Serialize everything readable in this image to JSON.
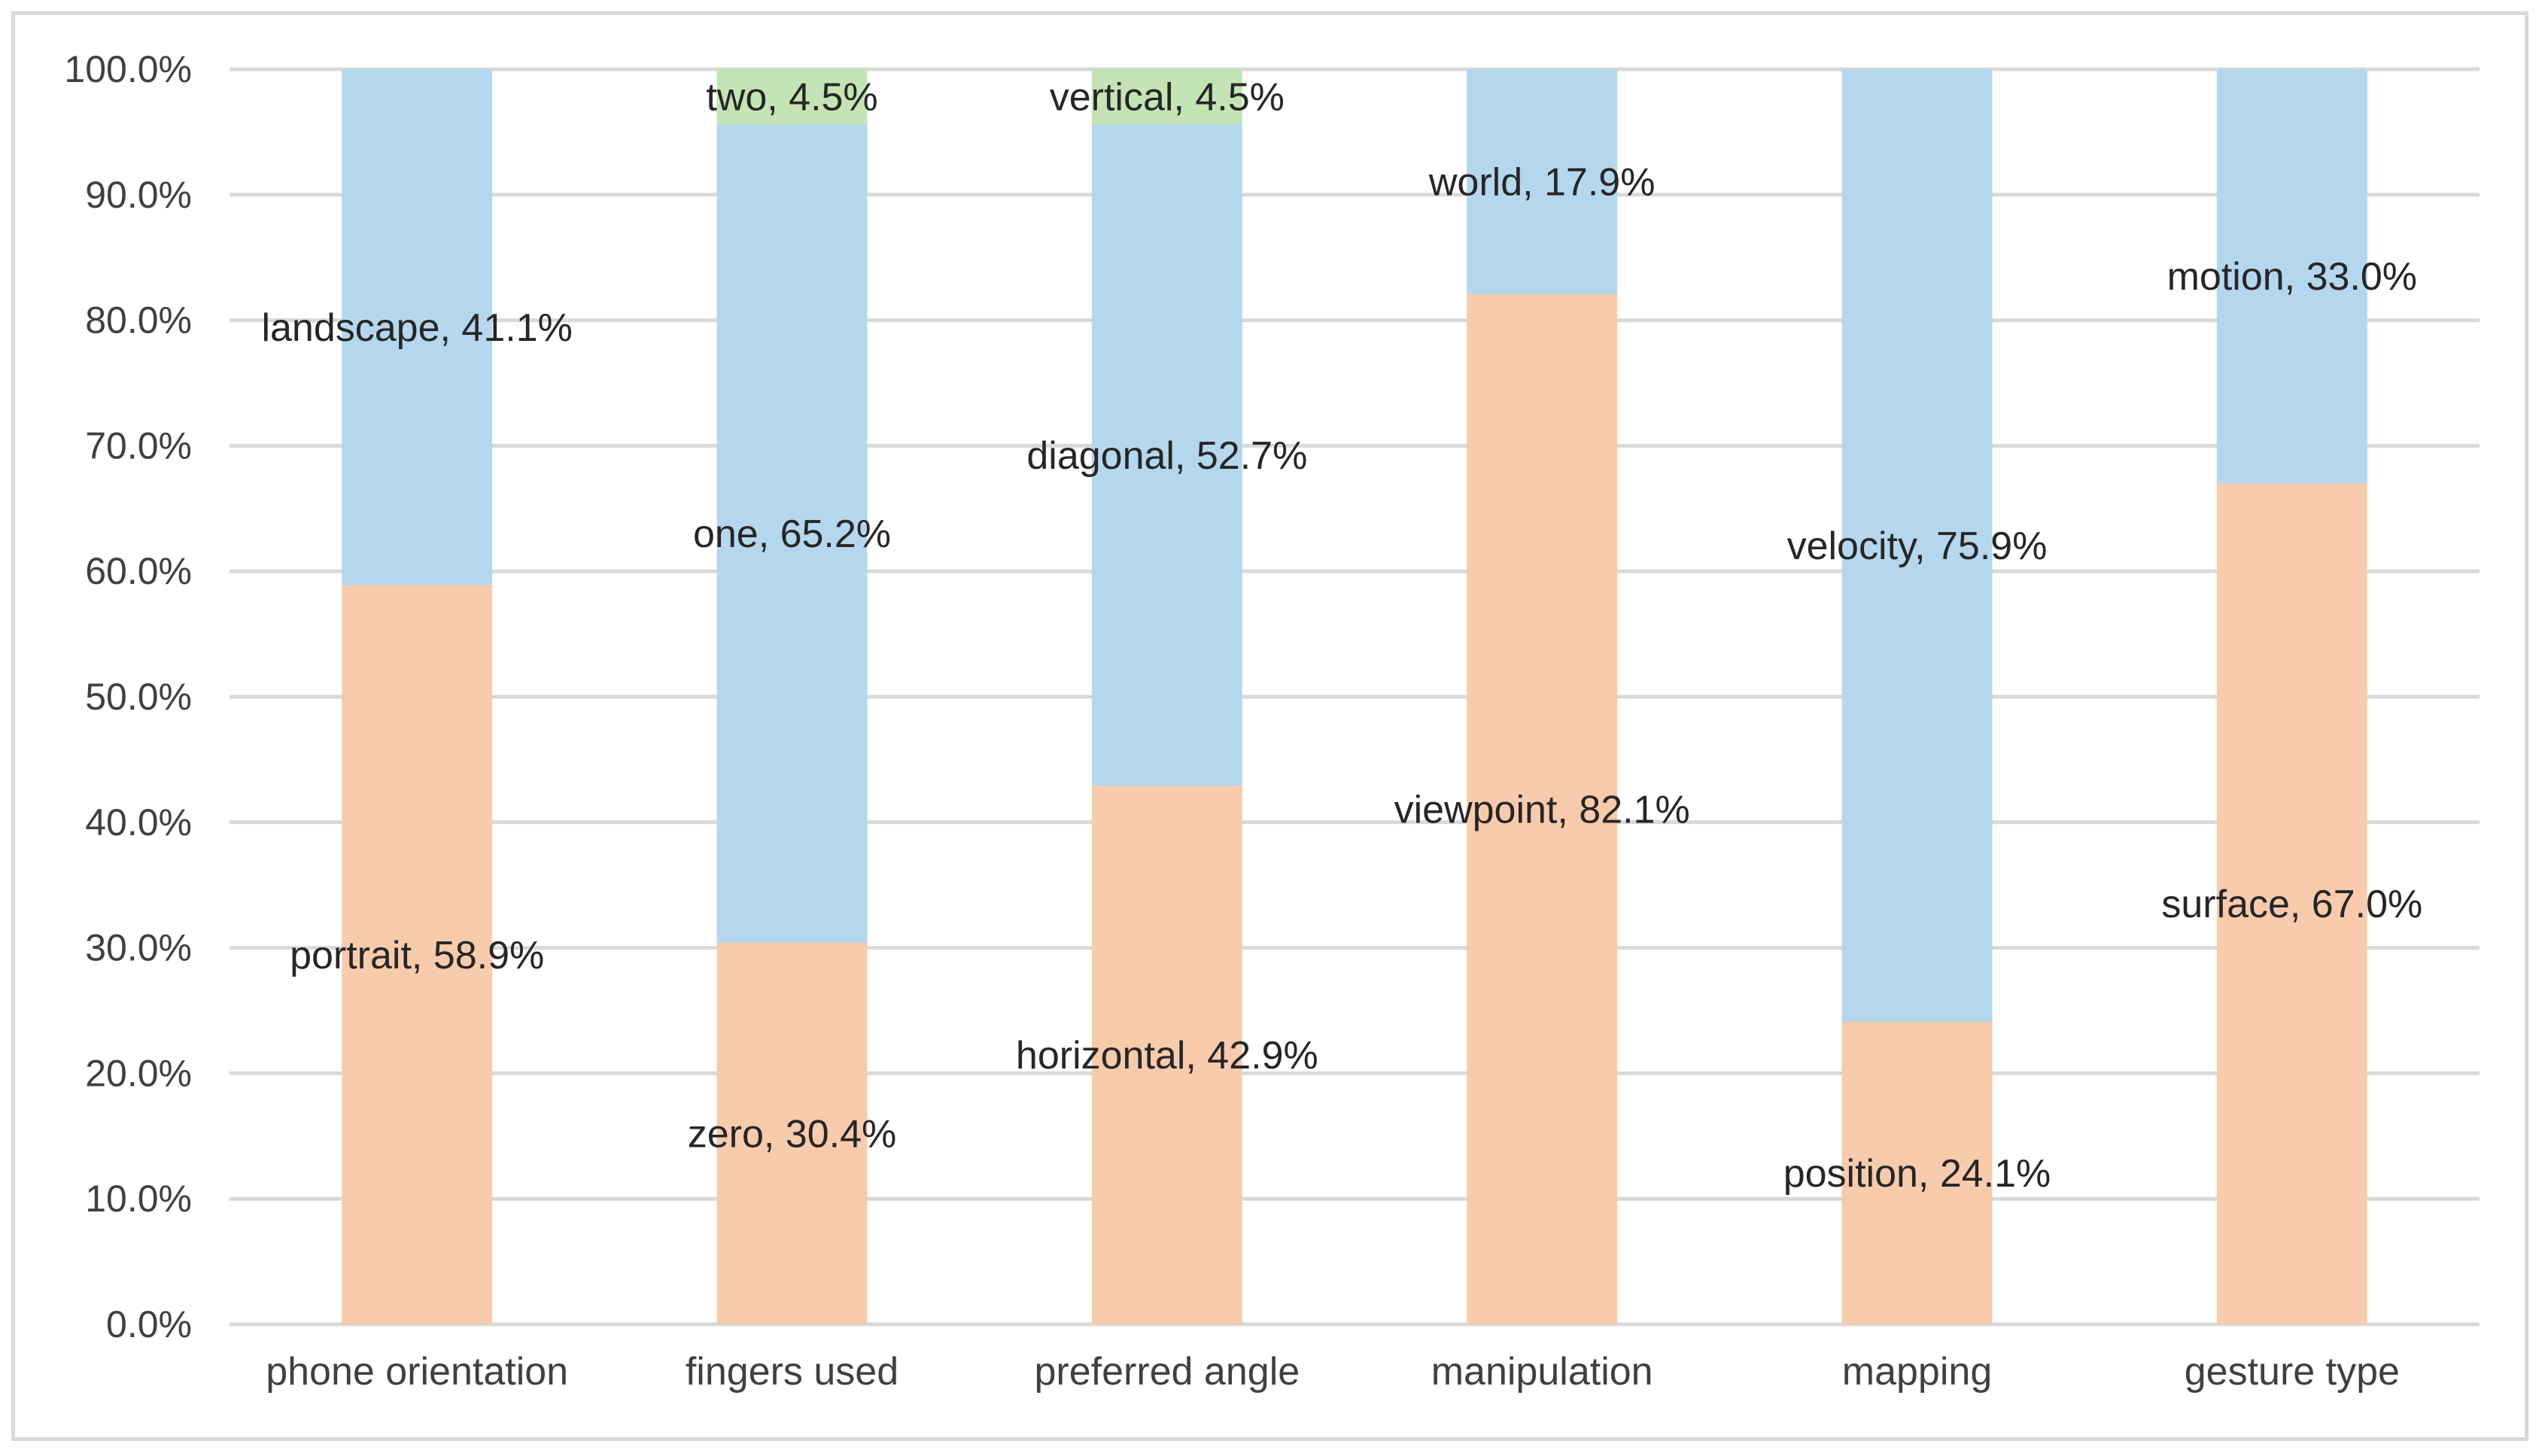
{
  "chart_data": {
    "type": "bar",
    "stacked": true,
    "title": "",
    "xlabel": "",
    "ylabel": "",
    "ylim": [
      0,
      100
    ],
    "y_ticks": [
      "0.0%",
      "10.0%",
      "20.0%",
      "30.0%",
      "40.0%",
      "50.0%",
      "60.0%",
      "70.0%",
      "80.0%",
      "90.0%",
      "100.0%"
    ],
    "categories": [
      "phone orientation",
      "fingers used",
      "preferred angle",
      "manipulation",
      "mapping",
      "gesture type"
    ],
    "series": [
      {
        "name": "first option",
        "color": "#F8CBAD",
        "values": [
          58.9,
          30.4,
          42.9,
          82.1,
          24.1,
          67.0
        ],
        "labels": [
          "portrait, 58.9%",
          "zero, 30.4%",
          "horizontal, 42.9%",
          "viewpoint, 82.1%",
          "position, 24.1%",
          "surface, 67.0%"
        ]
      },
      {
        "name": "second option",
        "color": "#B4D7EE",
        "values": [
          41.1,
          65.2,
          52.7,
          17.9,
          75.9,
          33.0
        ],
        "labels": [
          "landscape, 41.1%",
          "one, 65.2%",
          "diagonal, 52.7%",
          "world, 17.9%",
          "velocity, 75.9%",
          "motion, 33.0%"
        ]
      },
      {
        "name": "third option",
        "color": "#C5E4B5",
        "values": [
          0,
          4.5,
          4.5,
          0,
          0,
          0
        ],
        "labels": [
          "",
          "two, 4.5%",
          "vertical, 4.5%",
          "",
          "",
          ""
        ]
      }
    ],
    "grid": true,
    "legend": "none"
  }
}
